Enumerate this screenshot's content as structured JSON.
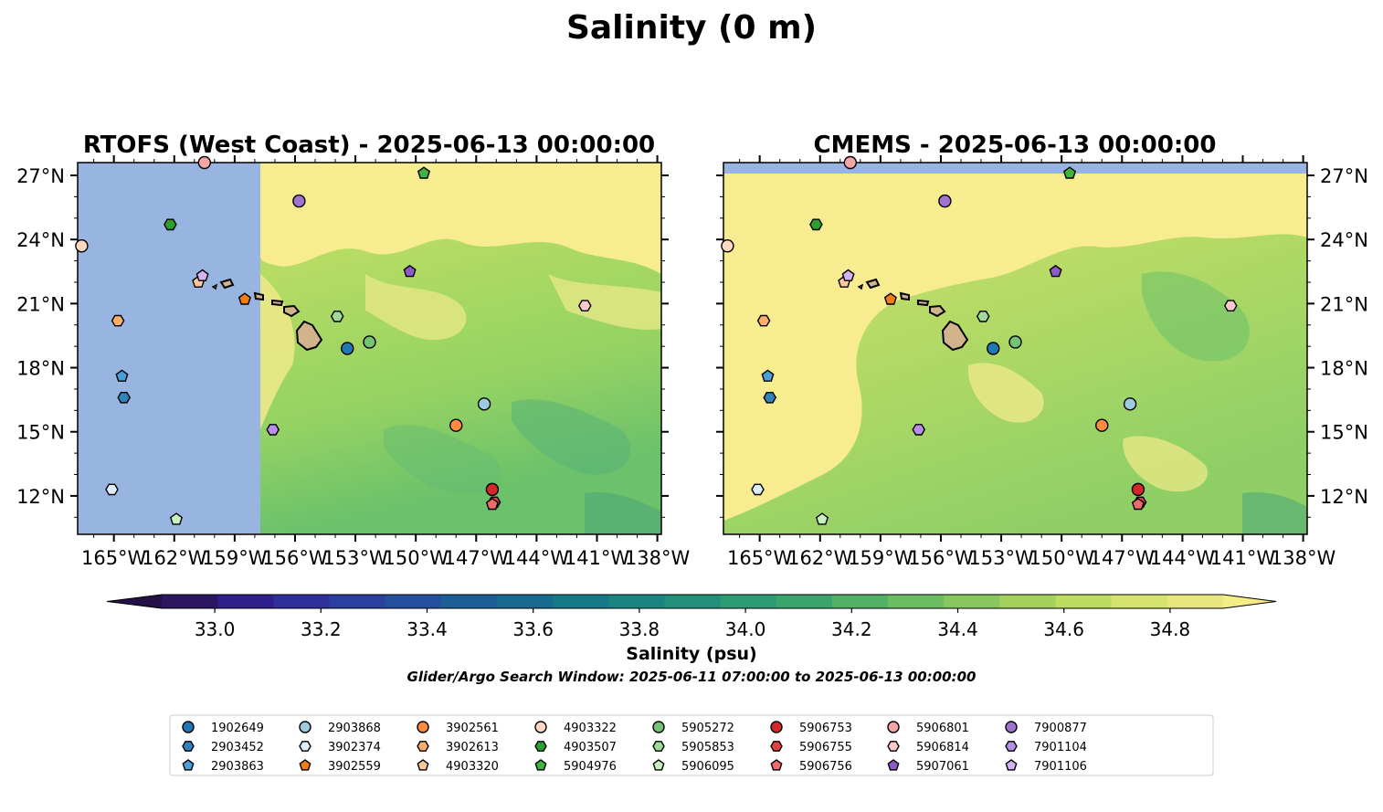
{
  "title": "Salinity (0 m)",
  "panels": [
    {
      "id": "rtofs",
      "title": "RTOFS (West Coast) - 2025-06-13 00:00:00",
      "y_axis_side": "left"
    },
    {
      "id": "cmems",
      "title": "CMEMS - 2025-06-13 00:00:00",
      "y_axis_side": "right"
    }
  ],
  "x_tick_labels": [
    "165°W",
    "162°W",
    "159°W",
    "156°W",
    "153°W",
    "150°W",
    "147°W",
    "144°W",
    "141°W",
    "138°W"
  ],
  "y_tick_labels": [
    "27°N",
    "24°N",
    "21°N",
    "18°N",
    "15°N",
    "12°N"
  ],
  "colorbar": {
    "label": "Salinity (psu)",
    "ticks": [
      "33.0",
      "33.2",
      "33.4",
      "33.6",
      "33.8",
      "34.0",
      "34.2",
      "34.4",
      "34.6",
      "34.8"
    ],
    "range": [
      32.9,
      34.9
    ],
    "extend": "both"
  },
  "search_window": "Glider/Argo Search Window: 2025-06-11 07:00:00 to 2025-06-13 00:00:00",
  "colors": {
    "no_data": "#98b4e0",
    "land": "#d2b48c",
    "high_salinity": "#f7ec8f"
  },
  "map_extent": {
    "lon": [
      -166.8,
      -137.8
    ],
    "lat": [
      10.2,
      27.6
    ]
  },
  "platforms": [
    {
      "id": "1902649",
      "marker": "circle",
      "color": "#1f77b4",
      "lon": -153.4,
      "lat": 18.9
    },
    {
      "id": "2903452",
      "marker": "hexagon",
      "color": "#3282bd",
      "lon": -164.5,
      "lat": 16.6
    },
    {
      "id": "2903863",
      "marker": "pentagon",
      "color": "#4c9ed9",
      "lon": -164.6,
      "lat": 17.6
    },
    {
      "id": "2903868",
      "marker": "circle",
      "color": "#9ecae1",
      "lon": -146.6,
      "lat": 16.3
    },
    {
      "id": "3902374",
      "marker": "hexagon",
      "color": "#dceefa",
      "lon": -165.1,
      "lat": 12.3
    },
    {
      "id": "3902559",
      "marker": "pentagon",
      "color": "#f07d14",
      "lon": -158.5,
      "lat": 21.2
    },
    {
      "id": "3902561",
      "marker": "circle",
      "color": "#fd8d3c",
      "lon": -148.0,
      "lat": 15.3
    },
    {
      "id": "3902613",
      "marker": "hexagon",
      "color": "#fdae6b",
      "lon": -164.8,
      "lat": 20.2
    },
    {
      "id": "4903320",
      "marker": "pentagon",
      "color": "#fdc89a",
      "lon": -160.8,
      "lat": 22.0
    },
    {
      "id": "4903322",
      "marker": "circle",
      "color": "#fdd9bf",
      "lon": -166.6,
      "lat": 23.7
    },
    {
      "id": "4903507",
      "marker": "hexagon",
      "color": "#2ca02c",
      "lon": -162.2,
      "lat": 24.7
    },
    {
      "id": "5904976",
      "marker": "pentagon",
      "color": "#41b341",
      "lon": -149.6,
      "lat": 27.1
    },
    {
      "id": "5905272",
      "marker": "circle",
      "color": "#74c476",
      "lon": -152.3,
      "lat": 19.2
    },
    {
      "id": "5905853",
      "marker": "hexagon",
      "color": "#a1d99b",
      "lon": -153.9,
      "lat": 20.4
    },
    {
      "id": "5906095",
      "marker": "pentagon",
      "color": "#c7f2c0",
      "lon": -161.9,
      "lat": 10.9
    },
    {
      "id": "5906753",
      "marker": "circle",
      "color": "#d62728",
      "lon": -146.2,
      "lat": 12.3
    },
    {
      "id": "5906755",
      "marker": "hexagon",
      "color": "#e0413f",
      "lon": -146.1,
      "lat": 11.7
    },
    {
      "id": "5906756",
      "marker": "pentagon",
      "color": "#ef6b6b",
      "lon": -146.2,
      "lat": 11.6
    },
    {
      "id": "5906801",
      "marker": "circle",
      "color": "#f4a6a6",
      "lon": -160.5,
      "lat": 27.6
    },
    {
      "id": "5906814",
      "marker": "hexagon",
      "color": "#fbc9c9",
      "lon": -141.6,
      "lat": 20.9
    },
    {
      "id": "5907061",
      "marker": "pentagon",
      "color": "#8c5bc7",
      "lon": -150.3,
      "lat": 22.5
    },
    {
      "id": "7900877",
      "marker": "circle",
      "color": "#9e74cf",
      "lon": -155.8,
      "lat": 25.8
    },
    {
      "id": "7901104",
      "marker": "hexagon",
      "color": "#b88ee6",
      "lon": -157.1,
      "lat": 15.1
    },
    {
      "id": "7901106",
      "marker": "pentagon",
      "color": "#d4b3f2",
      "lon": -160.6,
      "lat": 22.3
    }
  ]
}
